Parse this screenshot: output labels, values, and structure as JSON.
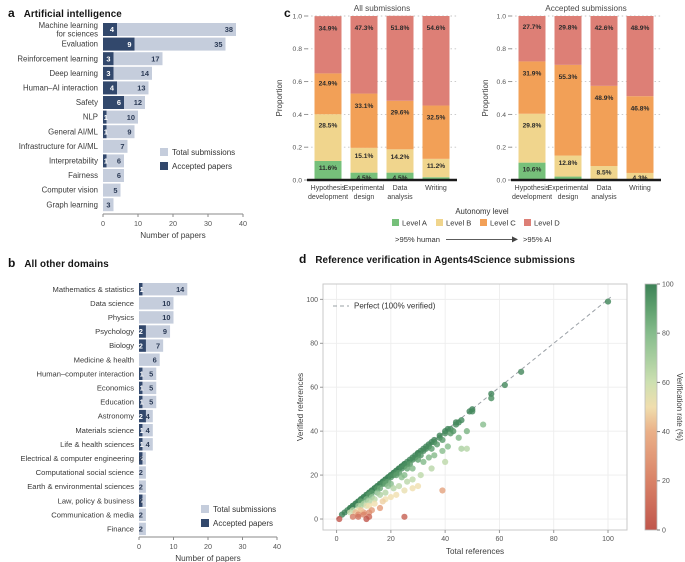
{
  "figure": {
    "panel_a": {
      "label": "a",
      "title": "Artificial intelligence"
    },
    "panel_b": {
      "label": "b",
      "title": "All other domains"
    },
    "panel_c": {
      "label": "c"
    },
    "panel_d": {
      "label": "d",
      "title": "Reference verification in Agents4Science submissions"
    }
  },
  "colors": {
    "total_bar": "#c5cddc",
    "accepted_bar": "#32486c",
    "total_label": "#2b3a55",
    "level_a": "#76c07a",
    "level_b": "#f0d58d",
    "level_c": "#f2a057",
    "level_d": "#dd7f76",
    "pct_label": "#2a2a2a"
  },
  "chart_data": [
    {
      "id": "a",
      "type": "bar",
      "orientation": "horizontal",
      "title": "Artificial intelligence",
      "xlabel": "Number of papers",
      "xlim": [
        0,
        40
      ],
      "xticks": [
        0,
        10,
        20,
        30,
        40
      ],
      "legend": [
        {
          "name": "Total submissions",
          "color": "#c5cddc"
        },
        {
          "name": "Accepted papers",
          "color": "#32486c"
        }
      ],
      "categories": [
        "Machine learning for sciences",
        "Evaluation",
        "Reinforcement learning",
        "Deep learning",
        "Human–AI interaction",
        "Safety",
        "NLP",
        "General AI/ML",
        "Infrastructure for AI/ML",
        "Interpretability",
        "Fairness",
        "Computer vision",
        "Graph learning"
      ],
      "category_line_breaks": {
        "Machine learning for sciences": [
          "Machine learning",
          "for sciences"
        ]
      },
      "series": [
        {
          "name": "Total submissions",
          "values": [
            38,
            35,
            17,
            14,
            13,
            12,
            10,
            9,
            7,
            6,
            6,
            5,
            3
          ]
        },
        {
          "name": "Accepted papers",
          "values": [
            4,
            9,
            3,
            3,
            4,
            6,
            1,
            1,
            0,
            1,
            0,
            0,
            0
          ]
        }
      ]
    },
    {
      "id": "b",
      "type": "bar",
      "orientation": "horizontal",
      "title": "All other domains",
      "xlabel": "Number of papers",
      "xlim": [
        0,
        40
      ],
      "xticks": [
        0,
        10,
        20,
        30,
        40
      ],
      "legend": [
        {
          "name": "Total submissions",
          "color": "#c5cddc"
        },
        {
          "name": "Accepted papers",
          "color": "#32486c"
        }
      ],
      "categories": [
        "Mathematics & statistics",
        "Data science",
        "Physics",
        "Psychology",
        "Biology",
        "Medicine & health",
        "Human–computer interaction",
        "Economics",
        "Education",
        "Astronomy",
        "Materials science",
        "Life & health sciences",
        "Electrical & computer engineering",
        "Computational social science",
        "Earth & environmental sciences",
        "Law, policy & business",
        "Communication & media",
        "Finance"
      ],
      "category_line_breaks": {},
      "series": [
        {
          "name": "Total submissions",
          "values": [
            14,
            10,
            10,
            9,
            7,
            6,
            5,
            5,
            5,
            4,
            4,
            4,
            2,
            2,
            2,
            2,
            2,
            2
          ]
        },
        {
          "name": "Accepted papers",
          "values": [
            1,
            0,
            0,
            2,
            2,
            0,
            1,
            1,
            1,
            2,
            1,
            1,
            1,
            0,
            0,
            1,
            0,
            0
          ]
        }
      ]
    },
    {
      "id": "c",
      "type": "stacked-bar-pair",
      "ylabel": "Proportion",
      "ylim": [
        0,
        1.0
      ],
      "yticks": [
        0,
        0.2,
        0.4,
        0.6,
        0.8,
        1.0
      ],
      "categories": [
        "Hypothesis development",
        "Experimental design",
        "Data analysis",
        "Writing"
      ],
      "subcharts": [
        {
          "title": "All submissions",
          "series": [
            {
              "name": "Level A",
              "values": [
                11.6,
                4.5,
                4.5,
                1.7
              ]
            },
            {
              "name": "Level B",
              "values": [
                28.5,
                15.1,
                14.2,
                11.2
              ]
            },
            {
              "name": "Level C",
              "values": [
                24.9,
                33.1,
                29.6,
                32.5
              ]
            },
            {
              "name": "Level D",
              "values": [
                34.9,
                47.3,
                51.8,
                54.6
              ]
            }
          ]
        },
        {
          "title": "Accepted submissions",
          "series": [
            {
              "name": "Level A",
              "values": [
                10.6,
                2.1,
                0,
                0
              ]
            },
            {
              "name": "Level B",
              "values": [
                29.8,
                12.8,
                8.5,
                4.3
              ]
            },
            {
              "name": "Level C",
              "values": [
                31.9,
                55.3,
                48.9,
                46.8
              ]
            },
            {
              "name": "Level D",
              "values": [
                27.7,
                29.8,
                42.6,
                48.9
              ]
            }
          ]
        }
      ],
      "legend": {
        "title": "Autonomy level",
        "items": [
          {
            "name": "Level A",
            "color": "#76c07a"
          },
          {
            "name": "Level B",
            "color": "#f0d58d"
          },
          {
            "name": "Level C",
            "color": "#f2a057"
          },
          {
            "name": "Level D",
            "color": "#dd7f76"
          }
        ],
        "left_note": ">95% human",
        "right_note": ">95% AI"
      }
    },
    {
      "id": "d",
      "type": "scatter",
      "title": "Reference verification in Agents4Science submissions",
      "xlabel": "Total references",
      "ylabel": "Verified references",
      "xticks": [
        0,
        20,
        40,
        60,
        80,
        100
      ],
      "yticks": [
        0,
        20,
        40,
        60,
        80,
        100
      ],
      "line_legend": "Perfect (100% verified)",
      "colorbar": {
        "label": "Verification rate (%)",
        "ticks": [
          0,
          20,
          40,
          60,
          80,
          100
        ],
        "min": 0,
        "max": 100
      },
      "points": [
        [
          2,
          2
        ],
        [
          3,
          3
        ],
        [
          4,
          4
        ],
        [
          5,
          5
        ],
        [
          5,
          5
        ],
        [
          6,
          6
        ],
        [
          6,
          6
        ],
        [
          7,
          7
        ],
        [
          7,
          7
        ],
        [
          8,
          8
        ],
        [
          8,
          8
        ],
        [
          9,
          9
        ],
        [
          9,
          9
        ],
        [
          10,
          10
        ],
        [
          10,
          10
        ],
        [
          11,
          11
        ],
        [
          11,
          11
        ],
        [
          12,
          12
        ],
        [
          12,
          12
        ],
        [
          13,
          13
        ],
        [
          13,
          13
        ],
        [
          14,
          14
        ],
        [
          14,
          14
        ],
        [
          15,
          15
        ],
        [
          15,
          15
        ],
        [
          16,
          16
        ],
        [
          16,
          16
        ],
        [
          17,
          17
        ],
        [
          17,
          17
        ],
        [
          18,
          18
        ],
        [
          18,
          18
        ],
        [
          19,
          19
        ],
        [
          19,
          19
        ],
        [
          20,
          20
        ],
        [
          20,
          20
        ],
        [
          21,
          21
        ],
        [
          21,
          21
        ],
        [
          22,
          22
        ],
        [
          22,
          22
        ],
        [
          23,
          23
        ],
        [
          23,
          23
        ],
        [
          24,
          24
        ],
        [
          24,
          24
        ],
        [
          25,
          25
        ],
        [
          25,
          25
        ],
        [
          26,
          26
        ],
        [
          27,
          27
        ],
        [
          28,
          28
        ],
        [
          29,
          29
        ],
        [
          30,
          30
        ],
        [
          30,
          30
        ],
        [
          31,
          31
        ],
        [
          32,
          32
        ],
        [
          33,
          33
        ],
        [
          34,
          34
        ],
        [
          35,
          35
        ],
        [
          36,
          36
        ],
        [
          38,
          38
        ],
        [
          40,
          40
        ],
        [
          41,
          41
        ],
        [
          44,
          44
        ],
        [
          45,
          44
        ],
        [
          49,
          49
        ],
        [
          50,
          50
        ],
        [
          50,
          49
        ],
        [
          57,
          57
        ],
        [
          100,
          99
        ],
        [
          9,
          8
        ],
        [
          12,
          11
        ],
        [
          13,
          12
        ],
        [
          15,
          14
        ],
        [
          17,
          16
        ],
        [
          18,
          17
        ],
        [
          20,
          19
        ],
        [
          21,
          20
        ],
        [
          22,
          21
        ],
        [
          24,
          23
        ],
        [
          25,
          24
        ],
        [
          26,
          25
        ],
        [
          28,
          27
        ],
        [
          29,
          28
        ],
        [
          30,
          29
        ],
        [
          32,
          31
        ],
        [
          33,
          32
        ],
        [
          34,
          33
        ],
        [
          36,
          35
        ],
        [
          38,
          37
        ],
        [
          40,
          39
        ],
        [
          42,
          41
        ],
        [
          44,
          43
        ],
        [
          46,
          45
        ],
        [
          57,
          55
        ],
        [
          62,
          61
        ],
        [
          68,
          67
        ],
        [
          16,
          14
        ],
        [
          19,
          17
        ],
        [
          23,
          21
        ],
        [
          27,
          25
        ],
        [
          31,
          29
        ],
        [
          35,
          32
        ],
        [
          39,
          36
        ],
        [
          43,
          40
        ],
        [
          37,
          34
        ],
        [
          26,
          23
        ],
        [
          22,
          20
        ],
        [
          18,
          16
        ],
        [
          30,
          27
        ],
        [
          42,
          39
        ],
        [
          8,
          6
        ],
        [
          11,
          9
        ],
        [
          15,
          12
        ],
        [
          20,
          16
        ],
        [
          24,
          19
        ],
        [
          28,
          23
        ],
        [
          32,
          26
        ],
        [
          36,
          29
        ],
        [
          41,
          33
        ],
        [
          45,
          37
        ],
        [
          48,
          40
        ],
        [
          34,
          28
        ],
        [
          25,
          20
        ],
        [
          19,
          15
        ],
        [
          13,
          10
        ],
        [
          54,
          43
        ],
        [
          39,
          31
        ],
        [
          6,
          4
        ],
        [
          9,
          6
        ],
        [
          12,
          8
        ],
        [
          16,
          11
        ],
        [
          21,
          14
        ],
        [
          26,
          17
        ],
        [
          31,
          20
        ],
        [
          35,
          23
        ],
        [
          28,
          18
        ],
        [
          23,
          15
        ],
        [
          46,
          32
        ],
        [
          48,
          32
        ],
        [
          10,
          7
        ],
        [
          14,
          9
        ],
        [
          18,
          12
        ],
        [
          40,
          26
        ],
        [
          8,
          4
        ],
        [
          11,
          6
        ],
        [
          14,
          7
        ],
        [
          18,
          9
        ],
        [
          22,
          11
        ],
        [
          25,
          13
        ],
        [
          28,
          14
        ],
        [
          30,
          15
        ],
        [
          17,
          8
        ],
        [
          12,
          6
        ],
        [
          20,
          10
        ],
        [
          5,
          3
        ],
        [
          7,
          3
        ],
        [
          10,
          3
        ],
        [
          13,
          4
        ],
        [
          16,
          5
        ],
        [
          39,
          13
        ],
        [
          12,
          3
        ],
        [
          9,
          4
        ],
        [
          8,
          2
        ],
        [
          10,
          2
        ],
        [
          6,
          1
        ],
        [
          8,
          1
        ],
        [
          12,
          1
        ],
        [
          1,
          0
        ],
        [
          11,
          0
        ],
        [
          25,
          1
        ]
      ]
    }
  ]
}
